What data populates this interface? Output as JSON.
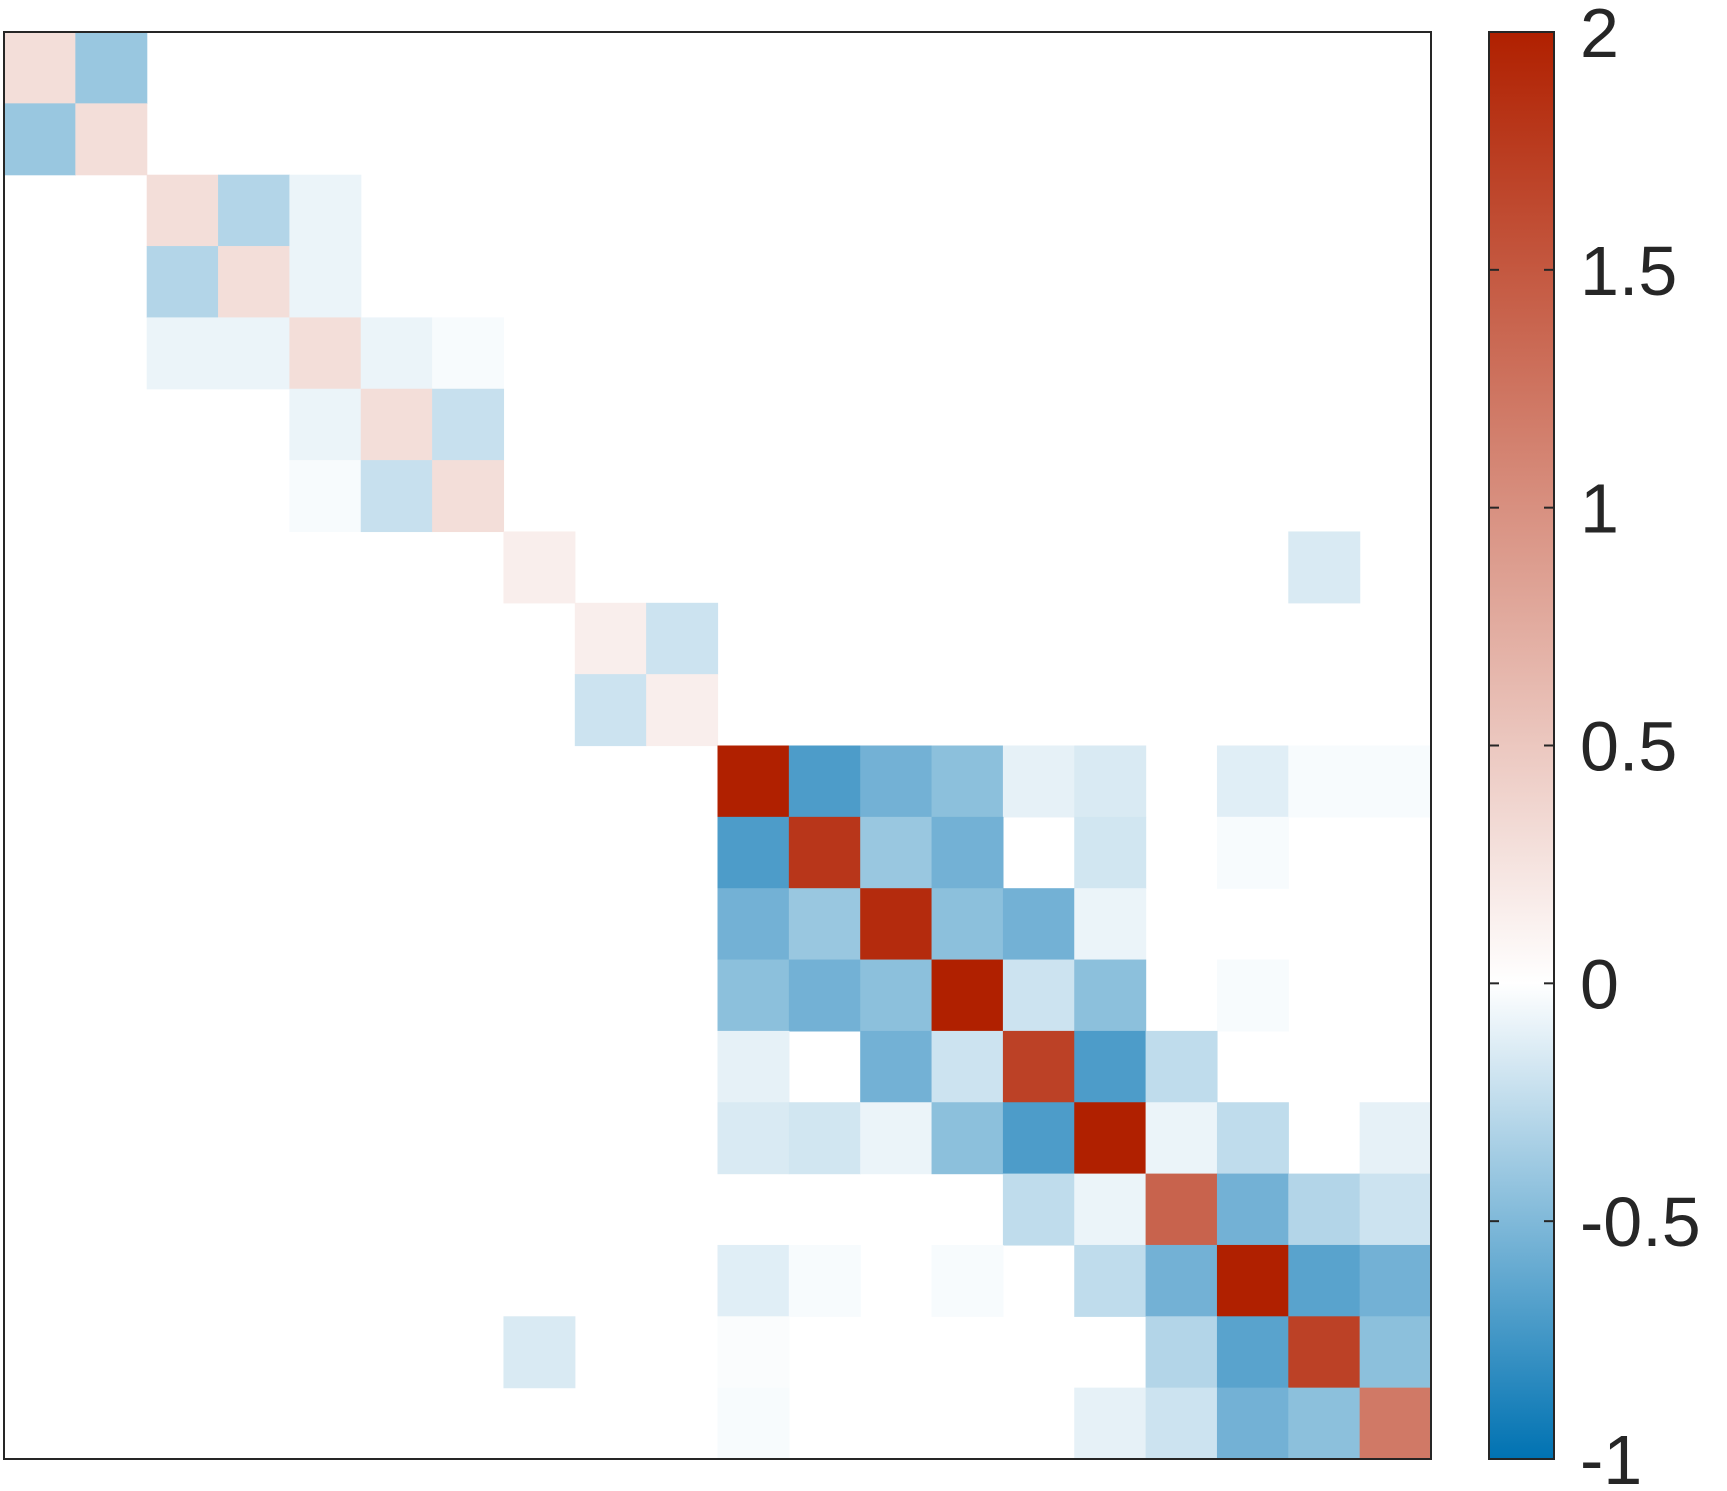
{
  "chart_data": {
    "type": "heatmap",
    "title": "",
    "xlabel": "",
    "ylabel": "",
    "rows": 20,
    "cols": 20,
    "clim": [
      -1,
      2
    ],
    "colormap": {
      "negative": "#0072B2",
      "zero": "#FFFFFF",
      "positive": "#B02000"
    },
    "colorbar": {
      "location": "right",
      "ticks": [
        -1,
        -0.5,
        0,
        0.5,
        1,
        1.5,
        2
      ],
      "tick_labels": [
        "-1",
        "-0.5",
        "0",
        "0.5",
        "1",
        "1.5",
        "2"
      ]
    },
    "matrix": [
      [
        0.3,
        -0.4,
        0,
        0,
        0,
        0,
        0,
        0,
        0,
        0,
        0,
        0,
        0,
        0,
        0,
        0,
        0,
        0,
        0,
        0
      ],
      [
        -0.4,
        0.3,
        0,
        0,
        0,
        0,
        0,
        0,
        0,
        0,
        0,
        0,
        0,
        0,
        0,
        0,
        0,
        0,
        0,
        0
      ],
      [
        0,
        0,
        0.3,
        -0.3,
        -0.08,
        0,
        0,
        0,
        0,
        0,
        0,
        0,
        0,
        0,
        0,
        0,
        0,
        0,
        0,
        0
      ],
      [
        0,
        0,
        -0.3,
        0.3,
        -0.08,
        0,
        0,
        0,
        0,
        0,
        0,
        0,
        0,
        0,
        0,
        0,
        0,
        0,
        0,
        0
      ],
      [
        0,
        0,
        -0.08,
        -0.08,
        0.3,
        -0.08,
        -0.03,
        0,
        0,
        0,
        0,
        0,
        0,
        0,
        0,
        0,
        0,
        0,
        0,
        0
      ],
      [
        0,
        0,
        0,
        0,
        -0.08,
        0.3,
        -0.22,
        0,
        0,
        0,
        0,
        0,
        0,
        0,
        0,
        0,
        0,
        0,
        0,
        0
      ],
      [
        0,
        0,
        0,
        0,
        -0.03,
        -0.22,
        0.3,
        0,
        0,
        0,
        0,
        0,
        0,
        0,
        0,
        0,
        0,
        0,
        0,
        0
      ],
      [
        0,
        0,
        0,
        0,
        0,
        0,
        0,
        0.15,
        0,
        0,
        0,
        0,
        0,
        0,
        0,
        0,
        0,
        0,
        -0.15,
        0
      ],
      [
        0,
        0,
        0,
        0,
        0,
        0,
        0,
        0,
        0.15,
        -0.2,
        0,
        0,
        0,
        0,
        0,
        0,
        0,
        0,
        0,
        0
      ],
      [
        0,
        0,
        0,
        0,
        0,
        0,
        0,
        0,
        -0.2,
        0.15,
        0,
        0,
        0,
        0,
        0,
        0,
        0,
        0,
        0,
        0
      ],
      [
        0,
        0,
        0,
        0,
        0,
        0,
        0,
        0,
        0,
        0,
        2.0,
        -0.7,
        -0.55,
        -0.45,
        -0.1,
        -0.15,
        0,
        -0.12,
        -0.03,
        -0.03
      ],
      [
        0,
        0,
        0,
        0,
        0,
        0,
        0,
        0,
        0,
        0,
        -0.7,
        1.8,
        -0.4,
        -0.55,
        0,
        -0.18,
        0,
        -0.03,
        0,
        0
      ],
      [
        0,
        0,
        0,
        0,
        0,
        0,
        0,
        0,
        0,
        0,
        -0.55,
        -0.4,
        1.9,
        -0.45,
        -0.55,
        -0.08,
        0,
        0,
        0,
        0
      ],
      [
        0,
        0,
        0,
        0,
        0,
        0,
        0,
        0,
        0,
        0,
        -0.45,
        -0.55,
        -0.45,
        2.0,
        -0.2,
        -0.45,
        0,
        -0.03,
        0,
        0
      ],
      [
        0,
        0,
        0,
        0,
        0,
        0,
        0,
        0,
        0,
        0,
        -0.1,
        0,
        -0.55,
        -0.2,
        1.7,
        -0.7,
        -0.25,
        0,
        0,
        0
      ],
      [
        0,
        0,
        0,
        0,
        0,
        0,
        0,
        0,
        0,
        0,
        -0.15,
        -0.18,
        -0.08,
        -0.45,
        -0.7,
        2.0,
        -0.08,
        -0.25,
        0,
        -0.1
      ],
      [
        0,
        0,
        0,
        0,
        0,
        0,
        0,
        0,
        0,
        0,
        0,
        0,
        0,
        0,
        -0.25,
        -0.08,
        1.4,
        -0.55,
        -0.3,
        -0.2
      ],
      [
        0,
        0,
        0,
        0,
        0,
        0,
        0,
        0,
        0,
        0,
        -0.12,
        -0.03,
        0,
        -0.03,
        0,
        -0.25,
        -0.55,
        2.0,
        -0.65,
        -0.55
      ],
      [
        0,
        0,
        0,
        0,
        0,
        0,
        0,
        -0.15,
        0,
        0,
        -0.02,
        0,
        0,
        0,
        0,
        0,
        -0.3,
        -0.65,
        1.7,
        -0.45
      ],
      [
        0,
        0,
        0,
        0,
        0,
        0,
        0,
        0,
        0,
        0,
        -0.03,
        0,
        0,
        0,
        0,
        -0.1,
        -0.2,
        -0.55,
        -0.45,
        1.2
      ]
    ]
  }
}
